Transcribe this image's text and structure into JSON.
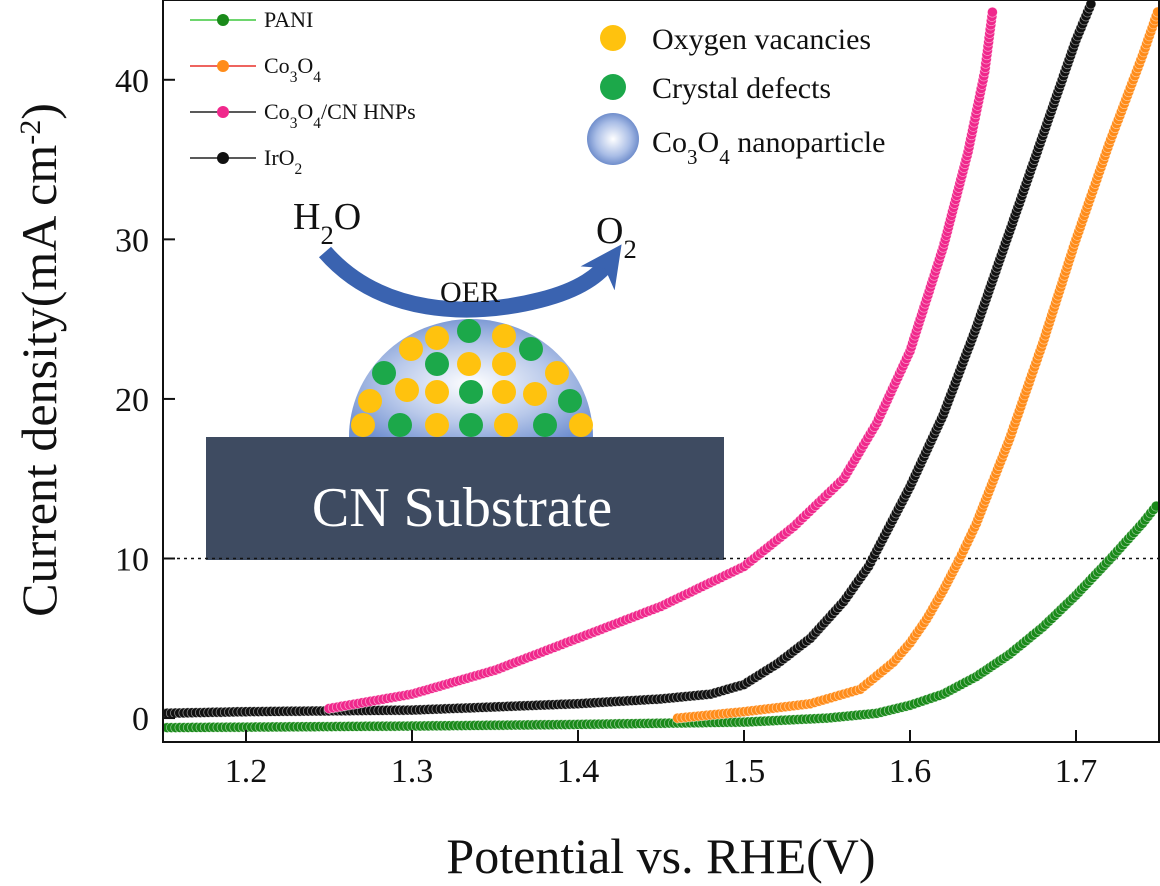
{
  "chart_data": {
    "type": "line",
    "title": "",
    "xlabel": "Potential vs. RHE(V)",
    "ylabel": "Current density(mA cm",
    "ylabel_sup": "-2",
    "ylabel_end": ")",
    "xlim": [
      1.15,
      1.75
    ],
    "ylim": [
      -1.5,
      45
    ],
    "xticks": [
      1.2,
      1.3,
      1.4,
      1.5,
      1.6,
      1.7
    ],
    "xtick_labels": [
      "1.2",
      "1.3",
      "1.4",
      "1.5",
      "1.6",
      "1.7"
    ],
    "yticks": [
      0,
      10,
      20,
      30,
      40
    ],
    "ytick_labels": [
      "0",
      "10",
      "20",
      "30",
      "40"
    ],
    "reference_line": {
      "y": 10,
      "style": "dotted"
    },
    "legend_position": "top-left",
    "series": [
      {
        "key": "pani",
        "name_parts": [
          [
            "PANI",
            ""
          ]
        ],
        "color": "#1a8a1a",
        "line_color": "#3ec93e",
        "points": [
          [
            1.15,
            -0.6
          ],
          [
            1.3,
            -0.5
          ],
          [
            1.4,
            -0.4
          ],
          [
            1.5,
            -0.25
          ],
          [
            1.55,
            0
          ],
          [
            1.58,
            0.3
          ],
          [
            1.6,
            0.8
          ],
          [
            1.62,
            1.5
          ],
          [
            1.64,
            2.6
          ],
          [
            1.66,
            4.0
          ],
          [
            1.68,
            5.7
          ],
          [
            1.7,
            7.7
          ],
          [
            1.72,
            9.9
          ],
          [
            1.74,
            12.2
          ],
          [
            1.75,
            13.5
          ]
        ]
      },
      {
        "key": "co3o4",
        "name_parts": [
          [
            "Co",
            ""
          ],
          [
            "3",
            "sub"
          ],
          [
            "O",
            ""
          ],
          [
            "4",
            "sub"
          ]
        ],
        "color": "#ff8c1a",
        "line_color": "#e8302a",
        "points": [
          [
            1.46,
            0
          ],
          [
            1.5,
            0.4
          ],
          [
            1.54,
            0.9
          ],
          [
            1.57,
            1.8
          ],
          [
            1.59,
            3.5
          ],
          [
            1.6,
            4.7
          ],
          [
            1.61,
            6.2
          ],
          [
            1.62,
            8.0
          ],
          [
            1.63,
            10.0
          ],
          [
            1.64,
            12.2
          ],
          [
            1.66,
            17.5
          ],
          [
            1.68,
            23.5
          ],
          [
            1.7,
            30.0
          ],
          [
            1.72,
            36.0
          ],
          [
            1.74,
            41.5
          ],
          [
            1.75,
            44.5
          ]
        ]
      },
      {
        "key": "co3o4cn",
        "name_parts": [
          [
            "Co",
            ""
          ],
          [
            "3",
            "sub"
          ],
          [
            "O",
            ""
          ],
          [
            "4",
            "sub"
          ],
          [
            "/CN HNPs",
            ""
          ]
        ],
        "color": "#f0288c",
        "line_color": "#222222",
        "points": [
          [
            1.25,
            0.6
          ],
          [
            1.3,
            1.5
          ],
          [
            1.35,
            3.0
          ],
          [
            1.4,
            5.0
          ],
          [
            1.45,
            7.0
          ],
          [
            1.5,
            9.5
          ],
          [
            1.53,
            12.0
          ],
          [
            1.56,
            15.0
          ],
          [
            1.58,
            18.5
          ],
          [
            1.6,
            23.0
          ],
          [
            1.62,
            29.5
          ],
          [
            1.635,
            35.5
          ],
          [
            1.645,
            40.5
          ],
          [
            1.65,
            44.5
          ]
        ]
      },
      {
        "key": "iro2",
        "name_parts": [
          [
            "IrO",
            ""
          ],
          [
            "2",
            "sub"
          ]
        ],
        "color": "#111111",
        "line_color": "#222222",
        "points": [
          [
            1.15,
            0.3
          ],
          [
            1.2,
            0.4
          ],
          [
            1.3,
            0.5
          ],
          [
            1.35,
            0.7
          ],
          [
            1.4,
            0.9
          ],
          [
            1.45,
            1.2
          ],
          [
            1.48,
            1.5
          ],
          [
            1.5,
            2.1
          ],
          [
            1.52,
            3.4
          ],
          [
            1.54,
            5.0
          ],
          [
            1.56,
            7.3
          ],
          [
            1.575,
            9.5
          ],
          [
            1.58,
            10.5
          ],
          [
            1.6,
            14.5
          ],
          [
            1.62,
            19.0
          ],
          [
            1.64,
            24.5
          ],
          [
            1.66,
            30.5
          ],
          [
            1.68,
            36.5
          ],
          [
            1.7,
            42.5
          ],
          [
            1.71,
            45.0
          ]
        ]
      }
    ]
  },
  "inset": {
    "key_items": [
      {
        "label_parts": [
          [
            "Oxygen vacancies",
            ""
          ]
        ],
        "color": "#ffc20e"
      },
      {
        "label_parts": [
          [
            "Crystal defects",
            ""
          ]
        ],
        "color": "#1ca84a"
      },
      {
        "label_parts": [
          [
            "Co",
            ""
          ],
          [
            "3",
            "sub"
          ],
          [
            "O",
            ""
          ],
          [
            "4",
            "sub"
          ],
          [
            " nanoparticle",
            ""
          ]
        ],
        "color": "#6f8fd0"
      }
    ],
    "reactant_parts": [
      [
        "H",
        ""
      ],
      [
        "2",
        "sub"
      ],
      [
        "O",
        ""
      ]
    ],
    "product_parts": [
      [
        "O",
        ""
      ],
      [
        "2",
        "sub"
      ]
    ],
    "reaction_label": "OER",
    "substrate_label": "CN Substrate",
    "substrate_color": "#3e4b61",
    "arrow_color": "#3a63b0",
    "dot_yellow": "#ffc20e",
    "dot_green": "#1ca84a"
  }
}
